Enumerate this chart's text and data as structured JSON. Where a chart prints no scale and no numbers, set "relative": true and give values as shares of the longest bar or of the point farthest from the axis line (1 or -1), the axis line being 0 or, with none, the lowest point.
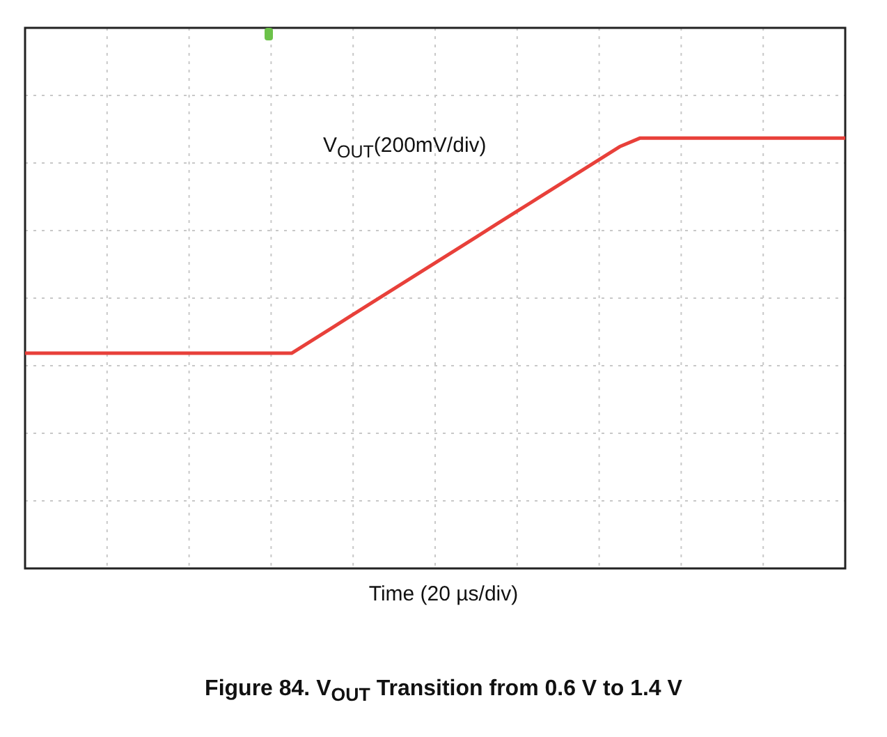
{
  "chart_data": {
    "type": "line",
    "title": "Figure 84. V$_{OUT}$ Transition from 0.6 V to 1.4 V",
    "xlabel": "Time (20 µs/div)",
    "annotations": [
      "V$_{OUT}$(200mV/div)"
    ],
    "relative": true,
    "grid": true,
    "legend": false,
    "marker": "none",
    "line_style": "solid",
    "categories": [
      null,
      null,
      null,
      null,
      null,
      null,
      null,
      null,
      null,
      null,
      null,
      null,
      null,
      null,
      null,
      null,
      null,
      null,
      null,
      null,
      null,
      null,
      null,
      null,
      null,
      null,
      null,
      null,
      null,
      null,
      null,
      null,
      null,
      null,
      null,
      null,
      null,
      null,
      null,
      null,
      null
    ],
    "series": [
      {
        "color": "#e8403a",
        "values": [
          0.5,
          0.5,
          0.5,
          0.5,
          0.5,
          0.5,
          0.5,
          0.5,
          0.5,
          0.5,
          0.5,
          0.5,
          0.5,
          0.5,
          0.53,
          0.56,
          0.59,
          0.62,
          0.65,
          0.68,
          0.71,
          0.74,
          0.77,
          0.8,
          0.83,
          0.86,
          0.89,
          0.92,
          0.95,
          0.98,
          1,
          1,
          1,
          1,
          1,
          1,
          1,
          1,
          1,
          1,
          1
        ]
      }
    ]
  }
}
